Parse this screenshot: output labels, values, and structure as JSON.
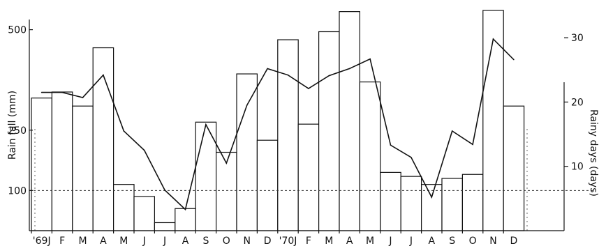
{
  "chart_data": {
    "type": "bar",
    "categories": [
      "'69J",
      "F",
      "M",
      "A",
      "M",
      "J",
      "J",
      "A",
      "S",
      "O",
      "N",
      "D",
      "'70J",
      "F",
      "M",
      "A",
      "M",
      "J",
      "J",
      "A",
      "S",
      "O",
      "N",
      "D"
    ],
    "series": [
      {
        "type": "bar",
        "axis": "left",
        "values": [
          330,
          345,
          310,
          455,
          115,
          85,
          20,
          55,
          270,
          195,
          390,
          225,
          475,
          265,
          495,
          545,
          370,
          145,
          135,
          115,
          130,
          140,
          548,
          310
        ]
      },
      {
        "type": "line",
        "axis": "right",
        "values": [
          21.5,
          21.5,
          20.7,
          24.2,
          15.5,
          12.5,
          6.3,
          3.3,
          16.5,
          10.5,
          19.5,
          25.2,
          24.2,
          22.1,
          24.1,
          25.2,
          26.7,
          13.3,
          11.4,
          5.2,
          15.5,
          13.4,
          29.8,
          26.6
        ]
      }
    ],
    "ylabel": "Rain fall (mm)",
    "y2label": "Rainy days (days)",
    "ylim": [
      0,
      560
    ],
    "y2lim": [
      0,
      35
    ],
    "yticks": [
      100,
      250,
      500
    ],
    "y2ticks": [
      10,
      20,
      30
    ],
    "reference_line": 100,
    "grid": false
  }
}
